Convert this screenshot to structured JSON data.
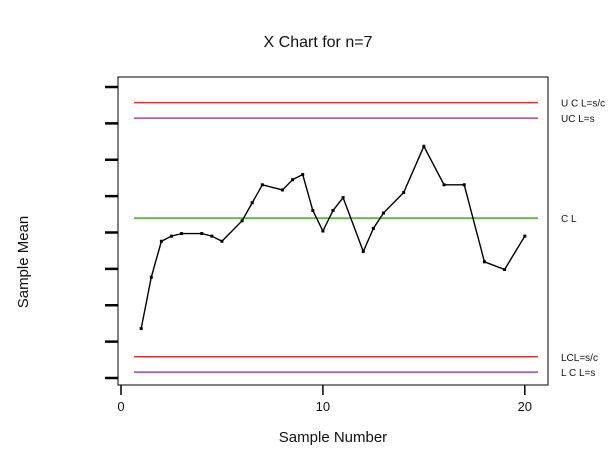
{
  "chart_data": {
    "type": "line",
    "title": "X Chart for n=7",
    "xlabel": "Sample Number",
    "ylabel": "Sample Mean",
    "xlim": [
      0,
      21
    ],
    "ylim": [
      0.8,
      6.8
    ],
    "x_ticks": [
      0,
      10,
      20
    ],
    "x_tick_labels": [
      "0",
      "10",
      "20"
    ],
    "y_tick_count": 9,
    "grid": false,
    "series": [
      {
        "x": [
          1,
          1.5,
          2,
          2.5,
          3,
          4,
          4.5,
          5,
          6,
          6.5,
          7,
          8,
          8.5,
          9,
          9.5,
          10,
          10.5,
          11,
          12,
          12.5,
          13,
          14,
          15,
          16,
          17,
          18,
          19,
          20
        ],
        "y": [
          1.9,
          2.9,
          3.6,
          3.7,
          3.75,
          3.75,
          3.7,
          3.6,
          4.0,
          4.35,
          4.7,
          4.6,
          4.8,
          4.9,
          4.2,
          3.8,
          4.2,
          4.45,
          3.4,
          3.85,
          4.15,
          4.55,
          5.45,
          4.7,
          4.7,
          3.2,
          3.05,
          3.7
        ],
        "color": "#000000"
      }
    ],
    "control_lines": [
      {
        "label": "U C L=s/c",
        "value": 6.3,
        "color": "#dd3333"
      },
      {
        "label": "UC L=s",
        "value": 6.0,
        "color": "#aa44aa"
      },
      {
        "label": "C L",
        "value": 4.05,
        "color": "#44aa22"
      },
      {
        "label": "LCL=s/c",
        "value": 1.35,
        "color": "#dd3333"
      },
      {
        "label": "L C L=s",
        "value": 1.05,
        "color": "#aa44aa"
      }
    ]
  }
}
